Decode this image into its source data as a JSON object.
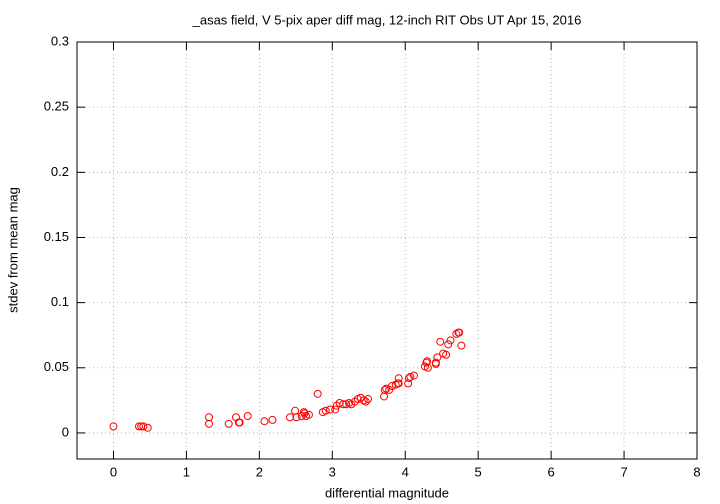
{
  "chart_data": {
    "type": "scatter",
    "title": "_asas field, V 5-pix aper diff mag,  12-inch RIT Obs UT Apr 15, 2016",
    "xlabel": "differential magnitude",
    "ylabel": "stdev from mean mag",
    "color": "#ff0000",
    "grid": true,
    "xlim": [
      -0.5,
      8
    ],
    "ylim": [
      -0.02,
      0.3
    ],
    "xticks": [
      0,
      1,
      2,
      3,
      4,
      5,
      6,
      7,
      8
    ],
    "yticks": [
      0,
      0.05,
      0.1,
      0.15,
      0.2,
      0.25,
      0.3
    ],
    "x": [
      0,
      0.35,
      0.38,
      0.41,
      0.47,
      1.31,
      1.31,
      1.58,
      1.68,
      1.72,
      1.73,
      1.84,
      2.07,
      2.18,
      2.42,
      2.49,
      2.51,
      2.58,
      2.61,
      2.62,
      2.64,
      2.68,
      2.8,
      2.87,
      2.91,
      2.97,
      3.04,
      3.06,
      3.1,
      3.15,
      3.19,
      3.23,
      3.26,
      3.31,
      3.35,
      3.39,
      3.43,
      3.46,
      3.49,
      3.71,
      3.72,
      3.74,
      3.78,
      3.82,
      3.87,
      3.9,
      3.91,
      3.91,
      4.04,
      4.05,
      4.07,
      4.12,
      4.27,
      4.29,
      4.31,
      4.3,
      4.42,
      4.44,
      4.42,
      4.48,
      4.52,
      4.56,
      4.59,
      4.62,
      4.7,
      4.74,
      4.73,
      4.77
    ],
    "values": [
      0.005,
      0.005,
      0.005,
      0.005,
      0.004,
      0.012,
      0.007,
      0.007,
      0.012,
      0.008,
      0.008,
      0.013,
      0.009,
      0.01,
      0.012,
      0.017,
      0.012,
      0.013,
      0.016,
      0.015,
      0.013,
      0.014,
      0.03,
      0.016,
      0.017,
      0.018,
      0.018,
      0.021,
      0.023,
      0.022,
      0.022,
      0.023,
      0.022,
      0.024,
      0.026,
      0.027,
      0.025,
      0.024,
      0.026,
      0.028,
      0.033,
      0.034,
      0.033,
      0.036,
      0.037,
      0.038,
      0.038,
      0.042,
      0.038,
      0.042,
      0.043,
      0.044,
      0.051,
      0.054,
      0.05,
      0.055,
      0.054,
      0.058,
      0.053,
      0.07,
      0.061,
      0.06,
      0.068,
      0.071,
      0.076,
      0.077,
      0.077,
      0.067
    ]
  }
}
